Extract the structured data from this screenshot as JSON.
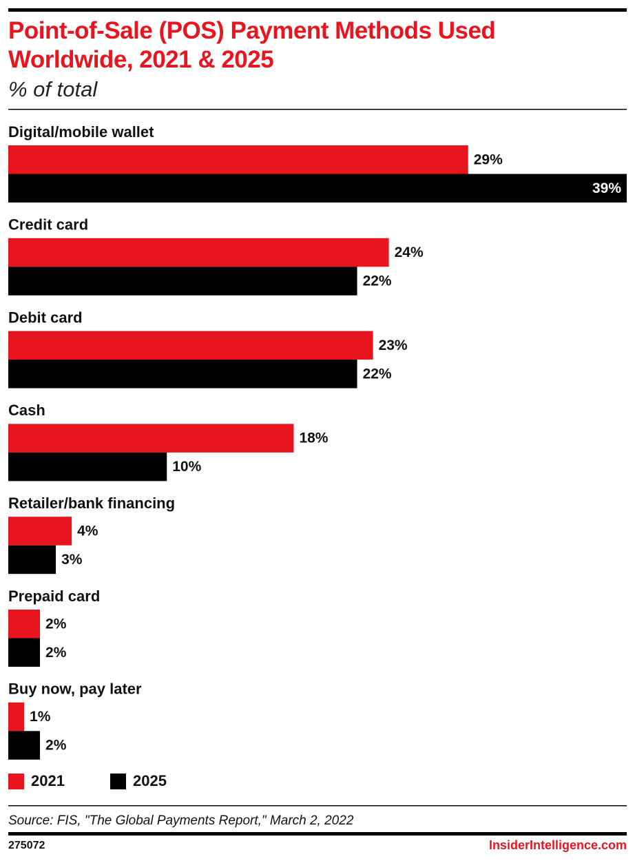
{
  "chart_data": {
    "type": "bar",
    "orientation": "horizontal",
    "title": "Point-of-Sale (POS) Payment Methods Used Worldwide, 2021 & 2025",
    "subtitle": "% of total",
    "categories": [
      "Digital/mobile wallet",
      "Credit card",
      "Debit card",
      "Cash",
      "Retailer/bank financing",
      "Prepaid card",
      "Buy now, pay later"
    ],
    "series": [
      {
        "name": "2021",
        "color": "#e8141e",
        "values": [
          29,
          24,
          23,
          18,
          4,
          2,
          1
        ],
        "value_labels": [
          "29%",
          "24%",
          "23%",
          "18%",
          "4%",
          "2%",
          "1%"
        ]
      },
      {
        "name": "2025",
        "color": "#000000",
        "values": [
          39,
          22,
          22,
          10,
          3,
          2,
          2
        ],
        "value_labels": [
          "39%",
          "22%",
          "22%",
          "10%",
          "3%",
          "2%",
          "2%"
        ]
      }
    ],
    "legend": "bottom-left",
    "source": "Source: FIS, \"The Global Payments Report,\" March 2, 2022",
    "chart_id": "275072",
    "brand": "InsiderIntelligence.com"
  }
}
